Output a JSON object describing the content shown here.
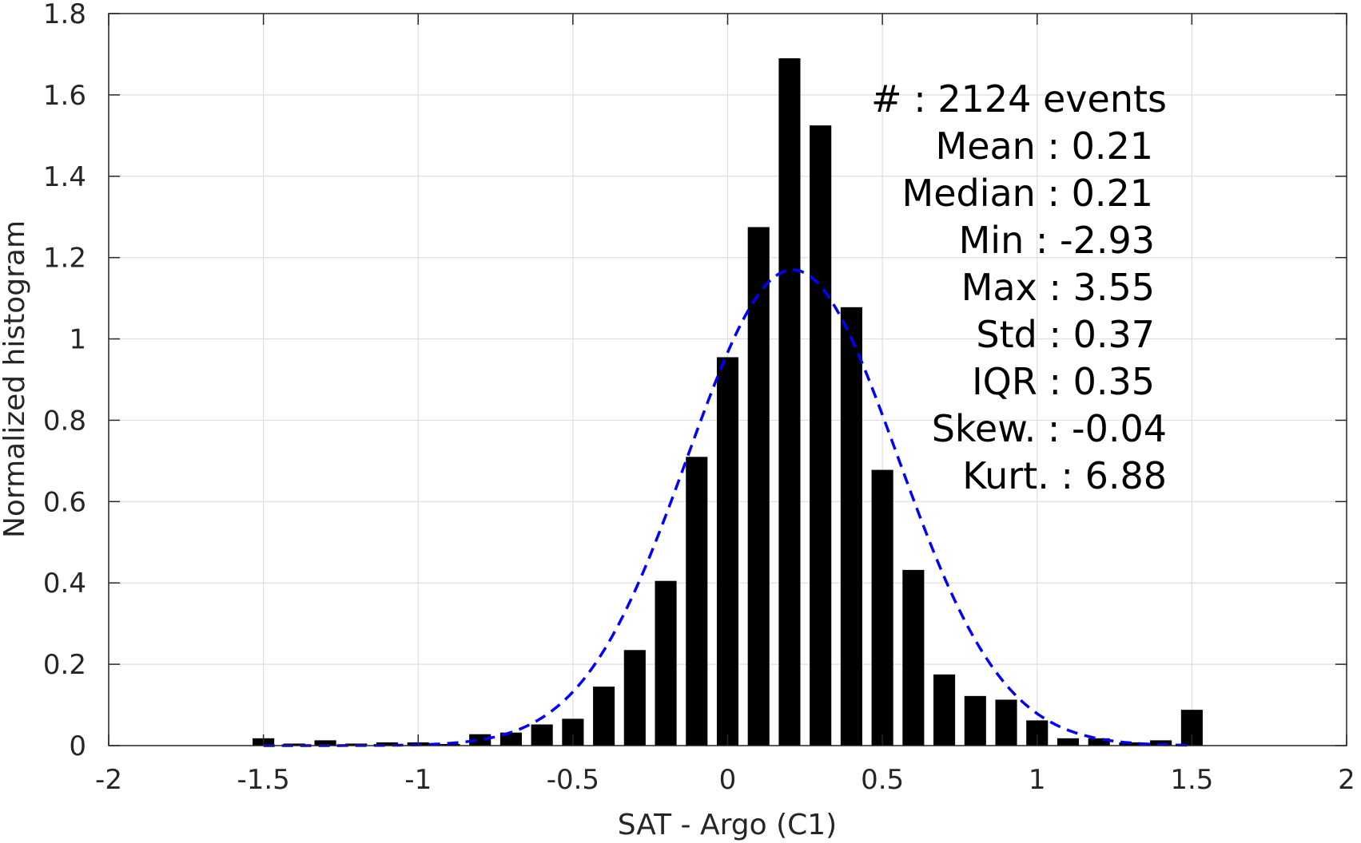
{
  "chart_data": {
    "type": "bar",
    "xlabel": "SAT - Argo (C1)",
    "ylabel": "Normalized histogram",
    "xlim": [
      -2,
      2
    ],
    "ylim": [
      0,
      1.8
    ],
    "xticks": [
      -2,
      -1.5,
      -1,
      -0.5,
      0,
      0.5,
      1,
      1.5,
      2
    ],
    "yticks": [
      0,
      0.2,
      0.4,
      0.6,
      0.8,
      1,
      1.2,
      1.4,
      1.6,
      1.8
    ],
    "grid": true,
    "bar_color": "#000000",
    "bar_width": 0.07,
    "series": [
      {
        "type": "bar",
        "x": [
          -1.5,
          -1.4,
          -1.3,
          -1.2,
          -1.1,
          -1.0,
          -0.9,
          -0.8,
          -0.7,
          -0.6,
          -0.5,
          -0.4,
          -0.3,
          -0.2,
          -0.1,
          0.0,
          0.1,
          0.2,
          0.3,
          0.4,
          0.5,
          0.6,
          0.7,
          0.8,
          0.9,
          1.0,
          1.1,
          1.2,
          1.3,
          1.4,
          1.5
        ],
        "values": [
          0.018,
          0.005,
          0.013,
          0.005,
          0.008,
          0.008,
          0.004,
          0.028,
          0.032,
          0.052,
          0.066,
          0.145,
          0.235,
          0.405,
          0.71,
          0.955,
          1.275,
          1.69,
          1.525,
          1.078,
          0.678,
          0.432,
          0.175,
          0.122,
          0.113,
          0.062,
          0.018,
          0.018,
          0.008,
          0.013,
          0.088
        ]
      },
      {
        "type": "line",
        "style": "dashed",
        "color": "#0000ff",
        "mean": 0.21,
        "std": 0.34,
        "peak": 1.17,
        "x_range": [
          -1.5,
          1.5
        ]
      }
    ],
    "annotations": [
      "#  : 2124 events",
      "Mean : 0.21",
      "Median : 0.21",
      "Min : -2.93",
      "Max : 3.55",
      "Std : 0.37",
      "IQR : 0.35",
      "Skew. : -0.04",
      "Kurt. : 6.88"
    ]
  }
}
